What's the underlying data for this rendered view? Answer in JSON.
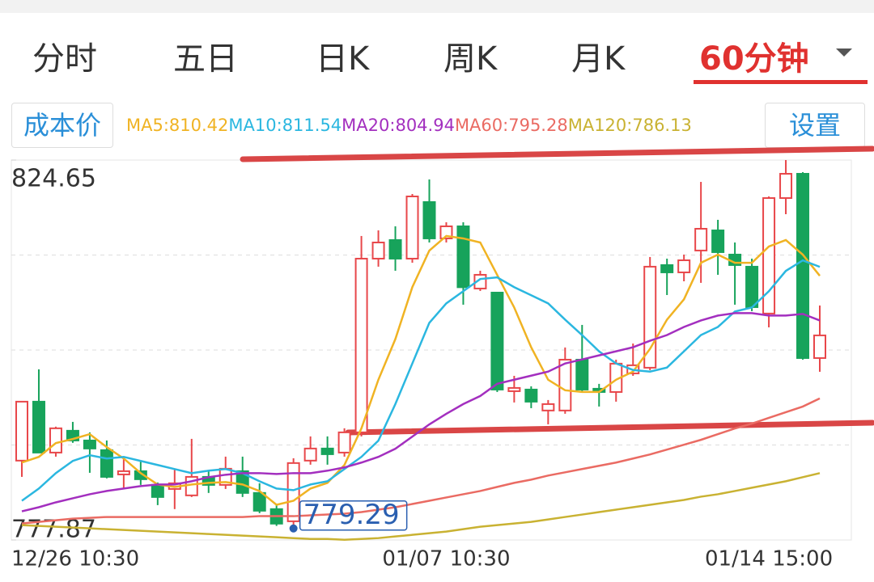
{
  "tabs": [
    "分时",
    "五日",
    "日K",
    "周K",
    "月K",
    "60分钟"
  ],
  "cost_button": "成本价",
  "settings_button": "设置",
  "chart_data": {
    "type": "candlestick",
    "categories": [
      "12/26 10:30",
      null,
      null,
      null,
      null,
      null,
      null,
      null,
      null,
      null,
      null,
      null,
      null,
      null,
      null,
      null,
      null,
      null,
      null,
      null,
      null,
      null,
      null,
      null,
      null,
      "01/07 10:30",
      null,
      null,
      null,
      null,
      null,
      null,
      null,
      null,
      null,
      null,
      null,
      null,
      null,
      null,
      null,
      null,
      null,
      null,
      "01/14 15:00",
      null,
      null,
      null
    ],
    "open": [
      787.64,
      794.9,
      788.63,
      791.32,
      790.12,
      788.93,
      785.94,
      786.34,
      784.65,
      784.15,
      783.36,
      785.64,
      784.65,
      786.34,
      783.66,
      781.67,
      780.17,
      787.64,
      789.13,
      788.63,
      791.12,
      812.51,
      814.8,
      812.51,
      819.48,
      815.0,
      816.49,
      808.83,
      808.33,
      796.19,
      796.39,
      793.81,
      793.81,
      800.07,
      796.49,
      796.09,
      798.38,
      799.08,
      811.72,
      810.82,
      813.51,
      815.99,
      813.01,
      811.52,
      805.75,
      819.97,
      822.96,
      800.27
    ],
    "high": [
      794.9,
      798.88,
      791.82,
      792.41,
      791.12,
      790.12,
      788.13,
      787.64,
      784.95,
      786.64,
      790.32,
      786.34,
      788.13,
      788.13,
      784.85,
      782.16,
      787.93,
      790.62,
      790.62,
      791.62,
      815.3,
      815.99,
      816.49,
      820.47,
      822.26,
      816.99,
      816.99,
      811.02,
      808.33,
      798.08,
      796.79,
      795.1,
      801.57,
      804.35,
      797.09,
      800.07,
      802.06,
      812.71,
      812.51,
      813.01,
      821.96,
      817.29,
      814.5,
      812.51,
      820.17,
      824.65,
      823.16,
      806.74
    ],
    "low": [
      785.64,
      788.63,
      788.13,
      789.83,
      786.14,
      785.45,
      784.15,
      784.65,
      782.16,
      781.67,
      783.16,
      783.66,
      784.15,
      783.16,
      781.17,
      779.6,
      779.29,
      787.14,
      787.14,
      788.13,
      790.62,
      811.52,
      811.02,
      812.01,
      814.5,
      814.5,
      806.84,
      808.53,
      796.09,
      794.8,
      794.1,
      792.11,
      793.41,
      796.09,
      794.3,
      794.9,
      798.08,
      798.78,
      808.03,
      809.72,
      809.53,
      810.52,
      806.84,
      806.04,
      804.05,
      817.98,
      800.07,
      798.58
    ],
    "close": [
      794.9,
      788.63,
      791.62,
      790.12,
      789.13,
      785.64,
      786.34,
      785.35,
      783.16,
      784.85,
      785.64,
      784.65,
      786.64,
      783.66,
      781.47,
      779.88,
      787.34,
      789.13,
      788.43,
      791.12,
      812.51,
      814.5,
      812.51,
      820.17,
      815.0,
      816.49,
      808.99,
      810.52,
      796.39,
      796.59,
      794.9,
      794.6,
      800.07,
      796.39,
      796.09,
      799.58,
      799.38,
      811.52,
      810.82,
      812.31,
      816.19,
      813.31,
      811.72,
      806.54,
      819.97,
      822.96,
      800.27,
      803.06
    ],
    "up_color": "#e8474a",
    "down_color": "#17a35b",
    "series": [
      {
        "name": "MA5:810.42",
        "color": "#f0b323",
        "values": [
          787.4,
          788.1,
          789.8,
          790.3,
          790.9,
          789.3,
          787.9,
          786.1,
          784.7,
          784.4,
          784.7,
          784.9,
          785.0,
          784.7,
          783.9,
          782.2,
          782.7,
          784.2,
          784.9,
          787.1,
          791.6,
          797.6,
          802.6,
          809.0,
          813.5,
          815.3,
          815.0,
          814.5,
          810.5,
          806.5,
          801.6,
          797.6,
          796.3,
          796.1,
          796.1,
          797.6,
          798.6,
          801.4,
          805.0,
          807.5,
          812.0,
          813.0,
          812.0,
          812.0,
          814.0,
          814.8,
          813.0,
          810.4
        ]
      },
      {
        "name": "MA10:811.54",
        "color": "#2bb7e0",
        "values": [
          782.7,
          784.2,
          786.1,
          787.6,
          788.3,
          787.9,
          788.1,
          787.6,
          787.1,
          786.6,
          786.1,
          786.4,
          786.6,
          786.1,
          785.1,
          784.2,
          784.0,
          784.7,
          785.1,
          786.6,
          788.1,
          790.1,
          794.6,
          799.6,
          804.6,
          807.0,
          808.5,
          810.0,
          810.2,
          809.0,
          808.0,
          807.0,
          805.0,
          803.1,
          801.1,
          799.6,
          798.8,
          798.6,
          799.1,
          801.1,
          803.1,
          804.1,
          806.0,
          806.5,
          808.5,
          811.0,
          812.3,
          811.5
        ]
      },
      {
        "name": "MA20:804.94",
        "color": "#a32fbf",
        "values": [
          781.4,
          781.9,
          782.5,
          783.0,
          783.5,
          783.9,
          784.2,
          784.5,
          784.7,
          784.7,
          785.1,
          785.6,
          785.9,
          786.1,
          786.1,
          786.0,
          786.1,
          786.1,
          786.4,
          786.8,
          787.4,
          788.1,
          789.1,
          790.6,
          792.1,
          793.4,
          794.6,
          795.6,
          797.1,
          797.6,
          798.1,
          798.6,
          799.6,
          800.1,
          800.6,
          801.1,
          801.6,
          802.4,
          803.1,
          804.1,
          804.9,
          805.5,
          805.8,
          805.8,
          805.5,
          805.5,
          805.7,
          804.9
        ]
      },
      {
        "name": "MA60:795.28",
        "color": "#ea6b63",
        "values": [
          779.9,
          780.1,
          780.3,
          780.5,
          780.6,
          780.7,
          780.7,
          780.7,
          780.7,
          780.7,
          780.7,
          780.7,
          780.7,
          780.7,
          780.8,
          780.8,
          780.8,
          780.9,
          781.0,
          781.1,
          781.3,
          781.6,
          781.9,
          782.3,
          782.7,
          783.1,
          783.5,
          783.9,
          784.4,
          784.9,
          785.3,
          785.8,
          786.2,
          786.6,
          787.0,
          787.4,
          787.9,
          788.4,
          789.0,
          789.6,
          790.2,
          790.9,
          791.6,
          792.2,
          792.9,
          793.6,
          794.3,
          795.3
        ]
      },
      {
        "name": "MA120:786.13",
        "color": "#c9b232",
        "values": [
          779.7,
          779.6,
          779.5,
          779.4,
          779.3,
          779.2,
          779.1,
          779.0,
          778.9,
          778.8,
          778.7,
          778.6,
          778.5,
          778.4,
          778.3,
          778.2,
          778.1,
          778.0,
          778.0,
          777.9,
          778.0,
          778.1,
          778.3,
          778.5,
          778.7,
          778.9,
          779.2,
          779.5,
          779.7,
          779.9,
          780.1,
          780.4,
          780.7,
          781.0,
          781.3,
          781.6,
          781.9,
          782.2,
          782.5,
          782.8,
          783.2,
          783.5,
          783.9,
          784.3,
          784.7,
          785.1,
          785.6,
          786.1
        ]
      }
    ],
    "ylim": [
      777.87,
      824.65
    ],
    "yticks": [
      777.87,
      824.65
    ],
    "low_annotation": 779.29,
    "grid": true
  }
}
